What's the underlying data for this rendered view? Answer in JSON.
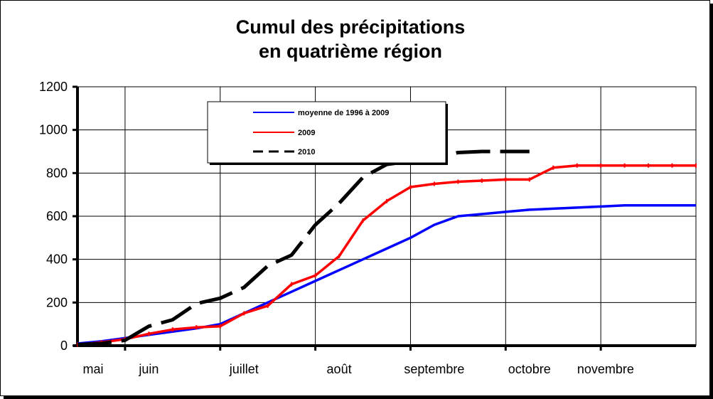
{
  "chart_data": {
    "type": "line",
    "title": [
      "Cumul des précipitations",
      "en quatrième région"
    ],
    "ylim": [
      0,
      1200
    ],
    "yticks": [
      0,
      200,
      400,
      600,
      800,
      1000,
      1200
    ],
    "grid": true,
    "legend_position": "top-center",
    "months": [
      "mai",
      "juin",
      "juillet",
      "août",
      "septembre",
      "octobre",
      "novembre"
    ],
    "series": [
      {
        "name": "moyenne de 1996 à 2009",
        "color": "#0000ff",
        "style": "solid",
        "x": [
          0,
          0.5,
          1,
          1.5,
          2,
          2.5,
          3,
          3.5,
          4,
          4.5,
          5,
          5.5,
          6,
          6.5,
          7,
          7.5,
          8,
          8.5,
          9,
          9.5,
          10,
          10.5,
          11,
          11.5,
          12,
          12.5,
          13
        ],
        "values": [
          10,
          20,
          35,
          50,
          65,
          80,
          100,
          150,
          200,
          250,
          300,
          350,
          400,
          450,
          500,
          560,
          600,
          610,
          620,
          630,
          635,
          640,
          645,
          650,
          650,
          650,
          650
        ]
      },
      {
        "name": "2009",
        "color": "#ff0000",
        "style": "solid",
        "x": [
          0,
          0.5,
          1,
          1.5,
          2,
          2.5,
          3,
          3.5,
          4,
          4.5,
          5,
          5.5,
          6,
          6.5,
          7,
          7.5,
          8,
          8.5,
          9,
          9.5,
          10,
          10.5,
          11,
          11.5,
          12,
          12.5,
          13
        ],
        "values": [
          5,
          15,
          30,
          55,
          75,
          85,
          90,
          150,
          185,
          285,
          325,
          415,
          580,
          670,
          735,
          750,
          760,
          765,
          770,
          770,
          825,
          835,
          835,
          835,
          835,
          835,
          835
        ]
      },
      {
        "name": "2010",
        "color": "#000000",
        "style": "dashed",
        "x": [
          0,
          0.5,
          1,
          1.5,
          2,
          2.5,
          3,
          3.5,
          4,
          4.5,
          5,
          5.5,
          6,
          6.5,
          7,
          7.5,
          8,
          8.5,
          9,
          9.5
        ],
        "values": [
          5,
          10,
          25,
          90,
          120,
          195,
          220,
          270,
          370,
          420,
          560,
          660,
          780,
          840,
          855,
          870,
          895,
          900,
          900,
          900
        ]
      }
    ]
  }
}
